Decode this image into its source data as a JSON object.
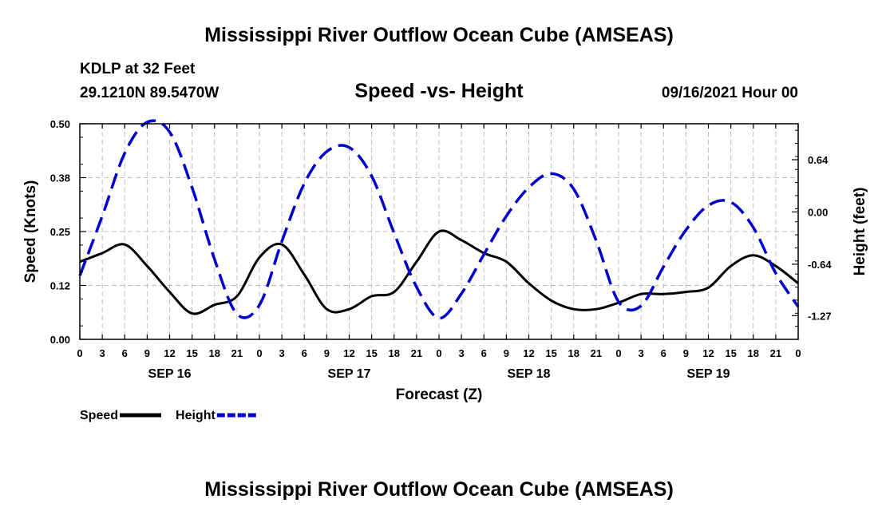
{
  "header": {
    "title_top": "Mississippi River Outflow Ocean Cube (AMSEAS)",
    "title_bottom": "Mississippi River Outflow Ocean Cube (AMSEAS)",
    "station": "KDLP at 32 Feet",
    "coords": "29.1210N  89.5470W",
    "subtitle": "Speed -vs- Height",
    "datetime": "09/16/2021 Hour 00"
  },
  "chart_data": {
    "type": "line",
    "title": "Speed -vs- Height",
    "xlabel": "Forecast (Z)",
    "ylabel": "Speed (Knots)",
    "y2label": "Height (feet)",
    "x_hours": [
      0,
      96
    ],
    "x_tick_labels": [
      "0",
      "3",
      "6",
      "9",
      "12",
      "15",
      "18",
      "21",
      "0",
      "3",
      "6",
      "9",
      "12",
      "15",
      "18",
      "21",
      "0",
      "3",
      "6",
      "9",
      "12",
      "15",
      "18",
      "21",
      "0",
      "3",
      "6",
      "9",
      "12",
      "15",
      "18",
      "21",
      "0"
    ],
    "day_labels": [
      {
        "hour": 12,
        "label": "SEP 16"
      },
      {
        "hour": 36,
        "label": "SEP 17"
      },
      {
        "hour": 60,
        "label": "SEP 18"
      },
      {
        "hour": 84,
        "label": "SEP 19"
      }
    ],
    "ylim": [
      0,
      0.5
    ],
    "y_ticks": [
      "0.00",
      "0.12",
      "0.25",
      "0.38",
      "0.50"
    ],
    "y2lim": [
      -1.56,
      1.08
    ],
    "y2_ticks": [
      "0.64",
      "0.00",
      "-0.64",
      "-1.27"
    ],
    "grid": true,
    "series": [
      {
        "name": "Speed",
        "axis": "left",
        "color": "#000000",
        "style": "solid",
        "x": [
          0,
          3,
          6,
          9,
          12,
          15,
          18,
          21,
          24,
          27,
          30,
          33,
          36,
          39,
          42,
          45,
          48,
          51,
          54,
          57,
          60,
          63,
          66,
          69,
          72,
          75,
          78,
          81,
          84,
          87,
          90,
          93,
          96
        ],
        "values": [
          0.18,
          0.2,
          0.22,
          0.17,
          0.11,
          0.06,
          0.08,
          0.1,
          0.19,
          0.22,
          0.15,
          0.07,
          0.07,
          0.1,
          0.11,
          0.18,
          0.25,
          0.23,
          0.2,
          0.18,
          0.13,
          0.09,
          0.07,
          0.07,
          0.085,
          0.105,
          0.105,
          0.11,
          0.12,
          0.17,
          0.195,
          0.17,
          0.13
        ]
      },
      {
        "name": "Height",
        "axis": "right",
        "color": "#0000cc",
        "style": "dashed",
        "x": [
          0,
          3,
          6,
          9,
          12,
          15,
          18,
          21,
          24,
          27,
          30,
          33,
          36,
          39,
          42,
          45,
          48,
          51,
          54,
          57,
          60,
          63,
          66,
          69,
          72,
          75,
          78,
          81,
          84,
          87,
          90,
          93,
          96
        ],
        "values": [
          -0.78,
          -0.05,
          0.72,
          1.1,
          0.98,
          0.3,
          -0.58,
          -1.25,
          -1.14,
          -0.36,
          0.35,
          0.74,
          0.79,
          0.44,
          -0.26,
          -0.92,
          -1.3,
          -1.0,
          -0.52,
          -0.05,
          0.3,
          0.47,
          0.28,
          -0.35,
          -1.1,
          -1.15,
          -0.67,
          -0.22,
          0.08,
          0.12,
          -0.19,
          -0.75,
          -1.16
        ]
      }
    ],
    "legend": {
      "placement": "bottom-left",
      "entries": [
        {
          "label": "Speed",
          "color": "#000000",
          "style": "solid"
        },
        {
          "label": "Height",
          "color": "#0000cc",
          "style": "dashed"
        }
      ]
    }
  }
}
